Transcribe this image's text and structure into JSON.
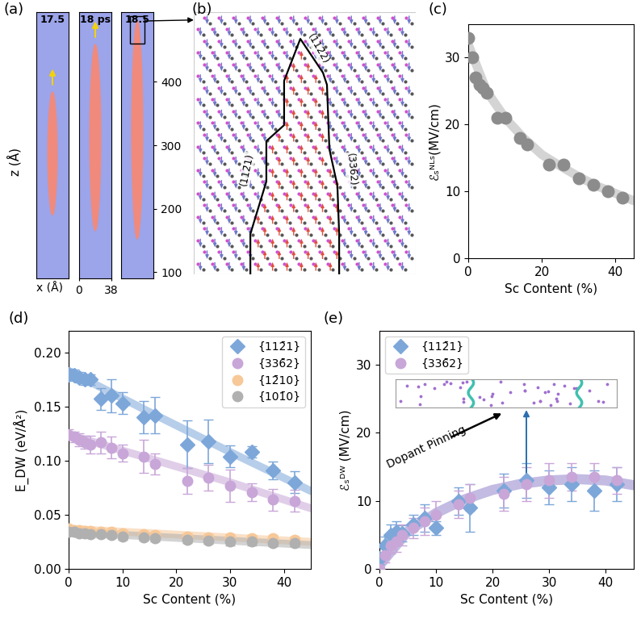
{
  "chart_data": [
    {
      "type": "snapshots",
      "panel_label": "(a)",
      "ylabel": "z (Å)",
      "xlabel": "x (Å)",
      "xlim": [
        0,
        38
      ],
      "xticks": [
        0,
        38
      ],
      "ylim": [
        90,
        510
      ],
      "yticks": [
        100,
        200,
        300,
        400
      ],
      "snapshots": [
        {
          "time": "17.5",
          "domain_z": [
            190,
            384
          ],
          "domain_width": 11
        },
        {
          "time": "18 ps",
          "domain_z": [
            165,
            459
          ],
          "domain_width": 13
        },
        {
          "time": "18.5",
          "domain_z": [
            152,
            496
          ],
          "domain_width": 13
        }
      ]
    },
    {
      "type": "diagram",
      "panel_label": "(b)",
      "facet_labels": [
        "(112̄2)",
        "(112̄1)",
        "(336̄2)"
      ]
    },
    {
      "type": "scatter",
      "panel_label": "(c)",
      "xlabel": "Sc Content (%)",
      "ylabel": "ℰₛᴺᴸˢ(MV/cm)",
      "xlim": [
        0,
        45
      ],
      "xticks": [
        0,
        20,
        40
      ],
      "ylim": [
        0,
        35
      ],
      "yticks": [
        0,
        10,
        20,
        30
      ],
      "x": [
        0,
        1,
        2,
        3,
        4,
        5,
        8,
        10,
        14,
        16,
        22,
        26,
        30,
        34,
        38,
        42
      ],
      "values": [
        33,
        30,
        27,
        26,
        25.5,
        24.7,
        21,
        21,
        18,
        17,
        14,
        14,
        12,
        11,
        10,
        9
      ],
      "color": "#8c8c8c",
      "trend": {
        "x": [
          0,
          5,
          10,
          15,
          20,
          25,
          30,
          35,
          40,
          45
        ],
        "values": [
          32,
          25,
          21,
          18,
          15.5,
          13.8,
          12.2,
          10.8,
          9.7,
          8.6
        ],
        "color": "#d4d4d4"
      }
    },
    {
      "type": "errorbar",
      "panel_label": "(d)",
      "xlabel": "Sc Content (%)",
      "ylabel": "E_DW (eV/Å²)",
      "xlim": [
        0,
        45
      ],
      "xticks": [
        0,
        10,
        20,
        30,
        40
      ],
      "ylim": [
        0,
        0.22
      ],
      "yticks": [
        {
          "value": 0,
          "label": "0.00"
        },
        {
          "value": 0.05,
          "label": "0.05"
        },
        {
          "value": 0.1,
          "label": "0.10"
        },
        {
          "value": 0.15,
          "label": "0.15"
        },
        {
          "value": 0.2,
          "label": "0.20"
        }
      ],
      "legend": "upper right",
      "series": [
        {
          "name": "{112̄1}",
          "color": "#7da7d9",
          "marker": "diamond",
          "x": [
            0,
            1,
            2,
            3,
            4,
            6,
            8,
            10,
            14,
            16,
            22,
            26,
            30,
            34,
            38,
            42
          ],
          "values": [
            0.18,
            0.179,
            0.177,
            0.175,
            0.175,
            0.157,
            0.16,
            0.153,
            0.14,
            0.142,
            0.115,
            0.118,
            0.104,
            0.108,
            0.091,
            0.08
          ],
          "errors": [
            0.005,
            0.005,
            0.005,
            0.005,
            0.005,
            0.01,
            0.015,
            0.01,
            0.015,
            0.017,
            0.022,
            0.02,
            0.01,
            0.005,
            0.008,
            0.01
          ],
          "trend": {
            "x": [
              0,
              15,
              30,
              45
            ],
            "values": [
              0.183,
              0.145,
              0.108,
              0.072
            ]
          }
        },
        {
          "name": "{336̄2}",
          "color": "#c8a6d8",
          "marker": "circle",
          "x": [
            0,
            1,
            2,
            3,
            4,
            6,
            8,
            10,
            14,
            16,
            22,
            26,
            30,
            34,
            38,
            42
          ],
          "values": [
            0.124,
            0.122,
            0.119,
            0.117,
            0.115,
            0.117,
            0.112,
            0.107,
            0.104,
            0.097,
            0.081,
            0.084,
            0.077,
            0.071,
            0.064,
            0.063
          ],
          "errors": [
            0.005,
            0.005,
            0.006,
            0.006,
            0.008,
            0.01,
            0.01,
            0.008,
            0.015,
            0.01,
            0.012,
            0.012,
            0.015,
            0.008,
            0.01,
            0.01
          ],
          "trend": {
            "x": [
              0,
              15,
              30,
              45
            ],
            "values": [
              0.124,
              0.102,
              0.08,
              0.056
            ]
          }
        },
        {
          "name": "{12̄10}",
          "color": "#f7c898",
          "marker": "circle",
          "x": [
            0,
            1,
            2,
            3,
            4,
            6,
            8,
            10,
            14,
            16,
            22,
            26,
            30,
            34,
            38,
            42
          ],
          "values": [
            0.037,
            0.036,
            0.036,
            0.035,
            0.035,
            0.034,
            0.034,
            0.033,
            0.032,
            0.031,
            0.03,
            0.029,
            0.029,
            0.028,
            0.028,
            0.027
          ],
          "errors": [
            0.003,
            0.003,
            0.003,
            0.003,
            0.003,
            0.003,
            0.003,
            0.003,
            0.003,
            0.003,
            0.003,
            0.003,
            0.003,
            0.003,
            0.003,
            0.003
          ],
          "trend": {
            "x": [
              0,
              15,
              30,
              45
            ],
            "values": [
              0.037,
              0.033,
              0.029,
              0.025
            ]
          }
        },
        {
          "name": "{101̄0}",
          "color": "#b0b0b0",
          "marker": "circle",
          "x": [
            0,
            1,
            2,
            3,
            4,
            6,
            8,
            10,
            14,
            16,
            22,
            26,
            30,
            34,
            38,
            42
          ],
          "values": [
            0.034,
            0.034,
            0.033,
            0.033,
            0.032,
            0.032,
            0.031,
            0.03,
            0.029,
            0.028,
            0.027,
            0.026,
            0.025,
            0.025,
            0.024,
            0.024
          ],
          "errors": [
            0.003,
            0.003,
            0.003,
            0.003,
            0.003,
            0.003,
            0.003,
            0.003,
            0.003,
            0.003,
            0.003,
            0.003,
            0.003,
            0.003,
            0.003,
            0.003
          ],
          "trend": {
            "x": [
              0,
              15,
              30,
              45
            ],
            "values": [
              0.034,
              0.03,
              0.026,
              0.022
            ]
          }
        }
      ]
    },
    {
      "type": "errorbar",
      "panel_label": "(e)",
      "xlabel": "Sc Content (%)",
      "ylabel": "ℰₛᴰᵂ (MV/cm)",
      "xlim": [
        0,
        45
      ],
      "xticks": [
        0,
        10,
        20,
        30,
        40
      ],
      "ylim": [
        0,
        35
      ],
      "yticks": [
        0,
        10,
        20,
        30
      ],
      "legend": "upper left",
      "annotation": "Dopant Pinning",
      "trend": {
        "x": [
          0,
          5,
          10,
          15,
          20,
          25,
          30,
          35,
          40,
          45
        ],
        "values": [
          0.5,
          5.5,
          8.2,
          10.2,
          11.6,
          12.5,
          13,
          13.2,
          13,
          12.3
        ],
        "color": "#b4aadb"
      },
      "series": [
        {
          "name": "{112̄1}",
          "color": "#7da7d9",
          "marker": "diamond",
          "x": [
            0,
            1,
            2,
            3,
            4,
            6,
            8,
            10,
            14,
            16,
            22,
            26,
            30,
            34,
            38,
            42
          ],
          "values": [
            1.5,
            3.5,
            5,
            5.5,
            5.2,
            6.5,
            7.5,
            6,
            10,
            9,
            11.5,
            13,
            12,
            12.5,
            11.5,
            12.5
          ],
          "errors": [
            0.8,
            1.2,
            1.5,
            1.5,
            1.2,
            1.5,
            2,
            1,
            2,
            3.5,
            2.5,
            2.5,
            2.5,
            2.5,
            3,
            2.5
          ]
        },
        {
          "name": "{336̄2}",
          "color": "#c8a6d8",
          "marker": "circle",
          "x": [
            0,
            1,
            2,
            3,
            4,
            6,
            8,
            10,
            14,
            16,
            22,
            26,
            30,
            34,
            38,
            42
          ],
          "values": [
            0,
            2,
            3.5,
            4,
            5,
            6,
            7,
            8,
            9.5,
            10.5,
            11,
            12.5,
            13,
            13.5,
            13.5,
            13
          ],
          "errors": [
            0.5,
            1,
            1.2,
            1.5,
            1.5,
            1.5,
            2,
            2,
            2,
            2,
            2.5,
            2.5,
            2.5,
            2,
            2,
            2
          ]
        }
      ]
    }
  ]
}
